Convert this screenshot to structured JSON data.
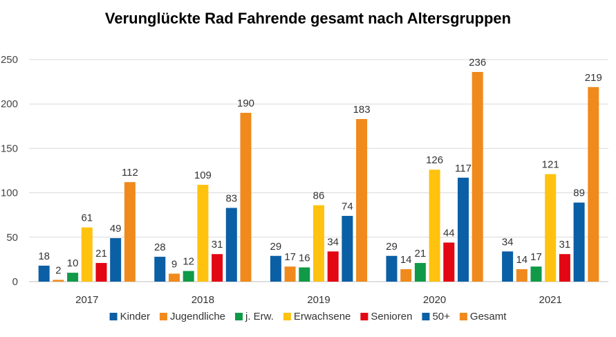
{
  "chart_data": {
    "type": "bar",
    "title": "Verunglückte Rad Fahrende gesamt nach Altersgruppen",
    "xlabel": "",
    "ylabel": "",
    "categories": [
      "2017",
      "2018",
      "2019",
      "2020",
      "2021"
    ],
    "ylim": [
      0,
      250
    ],
    "yticks": [
      "0",
      "50",
      "100",
      "150",
      "200",
      "250"
    ],
    "grid": true,
    "legend": "bottom",
    "series": [
      {
        "name": "Kinder",
        "color": "#0b5fa5",
        "values": [
          18,
          28,
          29,
          29,
          34
        ]
      },
      {
        "name": "Jugendliche",
        "color": "#f08a1c",
        "values": [
          2,
          9,
          17,
          14,
          14
        ]
      },
      {
        "name": "j. Erw.",
        "color": "#109a48",
        "values": [
          10,
          12,
          16,
          21,
          17
        ]
      },
      {
        "name": "Erwachsene",
        "color": "#ffc20e",
        "values": [
          61,
          109,
          86,
          126,
          121
        ]
      },
      {
        "name": "Senioren",
        "color": "#e30613",
        "values": [
          21,
          31,
          34,
          44,
          31
        ]
      },
      {
        "name": "50+",
        "color": "#0b5fa5",
        "values": [
          49,
          83,
          74,
          117,
          89
        ]
      },
      {
        "name": "Gesamt",
        "color": "#f08a1c",
        "values": [
          112,
          190,
          183,
          236,
          219
        ]
      }
    ]
  }
}
